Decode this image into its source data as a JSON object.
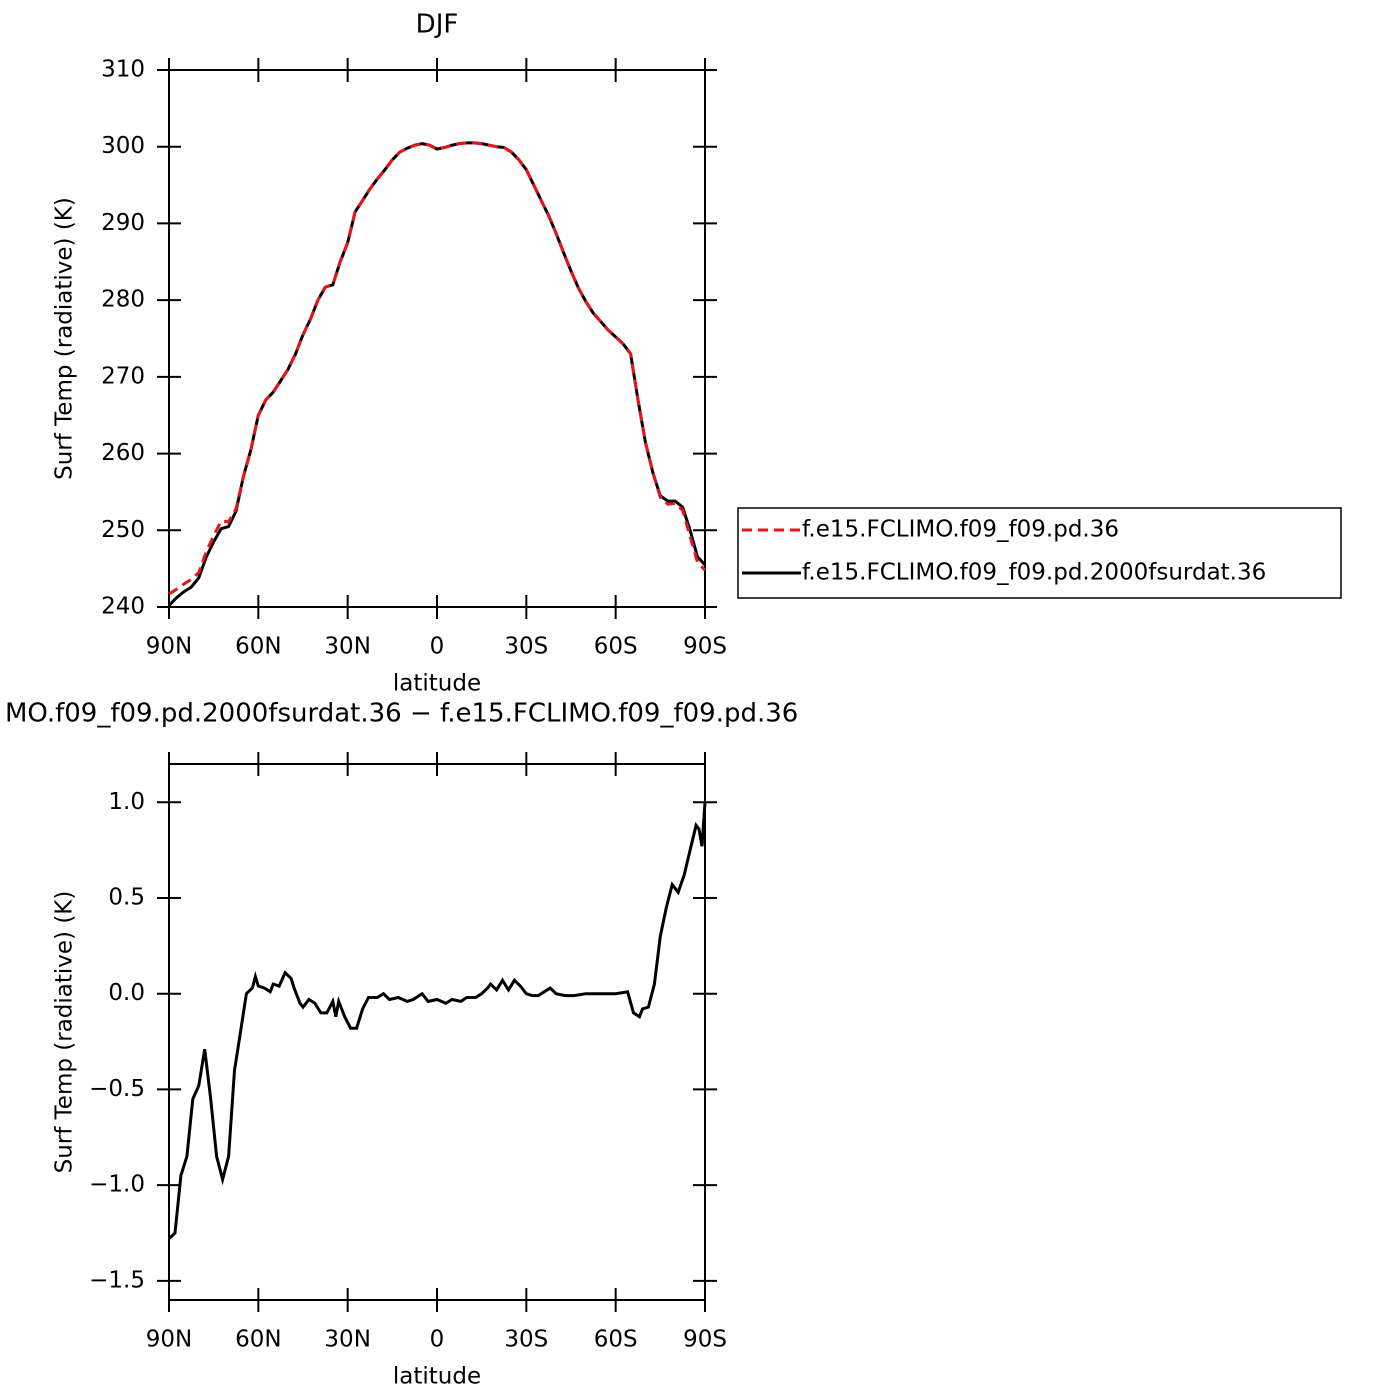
{
  "chart_data": [
    {
      "type": "line",
      "title": "DJF",
      "x_label": "latitude",
      "y_label": "Surf Temp (radiative) (K)",
      "x": [
        90,
        87.5,
        85,
        82.5,
        80,
        77.5,
        75,
        72.5,
        70,
        67.5,
        65,
        62.5,
        60,
        57.5,
        55,
        52.5,
        50,
        47.5,
        45,
        42.5,
        40,
        37.5,
        35,
        32.5,
        30,
        27.5,
        25,
        22.5,
        20,
        17.5,
        15,
        12.5,
        10,
        7.5,
        5,
        2.5,
        0,
        -2.5,
        -5,
        -7.5,
        -10,
        -12.5,
        -15,
        -17.5,
        -20,
        -22.5,
        -25,
        -27.5,
        -30,
        -32.5,
        -35,
        -37.5,
        -40,
        -42.5,
        -45,
        -47.5,
        -50,
        -52.5,
        -55,
        -57.5,
        -60,
        -62.5,
        -65,
        -67.5,
        -70,
        -72.5,
        -75,
        -77.5,
        -80,
        -82.5,
        -85,
        -87.5,
        -90
      ],
      "xlim": [
        90,
        -90
      ],
      "xticks": [
        {
          "value": 90,
          "label": "90N"
        },
        {
          "value": 60,
          "label": "60N"
        },
        {
          "value": 30,
          "label": "30N"
        },
        0,
        {
          "value": -30,
          "label": "30S"
        },
        {
          "value": -60,
          "label": "60S"
        },
        {
          "value": -90,
          "label": "90S"
        }
      ],
      "ylim": [
        240,
        310
      ],
      "yticks": [
        240,
        250,
        260,
        270,
        280,
        290,
        300,
        310
      ],
      "legend": "right",
      "series": [
        {
          "name": "f.e15.FCLIMO.f09_f09.pd.36",
          "color": "#e8141b",
          "dashed": true,
          "values": [
            241.7,
            242.3,
            243,
            243.6,
            244.5,
            247.2,
            249.3,
            251.2,
            251.1,
            252.8,
            257,
            260.5,
            265,
            267,
            268,
            269.5,
            271,
            273,
            275.5,
            277.5,
            280,
            281.7,
            282,
            285,
            287.5,
            291.5,
            293,
            294.5,
            295.8,
            297,
            298.3,
            299.3,
            299.8,
            300.2,
            300.4,
            300.2,
            299.7,
            299.9,
            300.2,
            300.4,
            300.5,
            300.5,
            300.4,
            300.2,
            300,
            299.9,
            299.3,
            298.3,
            297,
            295,
            293,
            291,
            288.7,
            286.2,
            283.8,
            281.6,
            279.8,
            278.3,
            277.2,
            276.1,
            275.2,
            274.3,
            273,
            267,
            261.5,
            257.5,
            254.3,
            253.4,
            253.5,
            252.6,
            249.2,
            245.8,
            244.8
          ]
        },
        {
          "name": "f.e15.FCLIMO.f09_f09.pd.2000fsurdat.36",
          "color": "#000000",
          "dashed": false,
          "values": [
            240.2,
            241.2,
            242,
            242.6,
            243.8,
            246.5,
            248.5,
            250.2,
            250.5,
            252.5,
            257,
            260.5,
            265,
            267,
            268,
            269.5,
            271,
            273,
            275.5,
            277.5,
            280,
            281.7,
            282,
            285,
            287.5,
            291.5,
            293,
            294.5,
            295.8,
            297,
            298.3,
            299.3,
            299.8,
            300.2,
            300.4,
            300.2,
            299.7,
            299.9,
            300.2,
            300.4,
            300.5,
            300.5,
            300.4,
            300.2,
            300,
            299.9,
            299.3,
            298.3,
            297,
            295,
            293,
            291,
            288.7,
            286.2,
            283.8,
            281.6,
            279.8,
            278.3,
            277.2,
            276.1,
            275.2,
            274.3,
            273,
            267,
            261.5,
            257.5,
            254.5,
            253.8,
            253.8,
            253,
            250,
            246.5,
            245.5
          ]
        }
      ]
    },
    {
      "type": "line",
      "title": "MO.f09_f09.pd.2000fsurdat.36 − f.e15.FCLIMO.f09_f09.pd.36",
      "x_label": "latitude",
      "y_label": "Surf Temp (radiative) (K)",
      "x": [
        90,
        88,
        86,
        84,
        82,
        80,
        78,
        76,
        74,
        72,
        70,
        68,
        66,
        64,
        62,
        61,
        60,
        58,
        56,
        55,
        53,
        51,
        49,
        48,
        46,
        45,
        43,
        41,
        39,
        37,
        35,
        34,
        33,
        31,
        29,
        27,
        25,
        23,
        20,
        18,
        16,
        13,
        10,
        8,
        5,
        3,
        0,
        -3,
        -5,
        -8,
        -10,
        -13,
        -15,
        -17,
        -18,
        -20,
        -22,
        -24,
        -26,
        -28,
        -30,
        -32,
        -34,
        -36,
        -38,
        -40,
        -43,
        -46,
        -50,
        -55,
        -60,
        -64,
        -66,
        -68,
        -69,
        -71,
        -73,
        -75,
        -77,
        -79,
        -81,
        -83,
        -85,
        -87,
        -88,
        -89,
        -90
      ],
      "xlim": [
        90,
        -90
      ],
      "xticks": [
        {
          "value": 90,
          "label": "90N"
        },
        {
          "value": 60,
          "label": "60N"
        },
        {
          "value": 30,
          "label": "30N"
        },
        0,
        {
          "value": -30,
          "label": "30S"
        },
        {
          "value": -60,
          "label": "60S"
        },
        {
          "value": -90,
          "label": "90S"
        }
      ],
      "ylim": [
        -1.6,
        1.2
      ],
      "yticks": [
        {
          "value": -1.5,
          "label": "−1.5"
        },
        {
          "value": -1,
          "label": "−1.0"
        },
        {
          "value": -0.5,
          "label": "−0.5"
        },
        {
          "value": 0,
          "label": "0.0"
        },
        {
          "value": 0.5,
          "label": "0.5"
        },
        {
          "value": 1,
          "label": "1.0"
        }
      ],
      "series": [
        {
          "color": "#000000",
          "dashed": false,
          "values": [
            -1.28,
            -1.25,
            -0.95,
            -0.85,
            -0.55,
            -0.48,
            -0.29,
            -0.55,
            -0.85,
            -0.97,
            -0.85,
            -0.4,
            -0.2,
            0,
            0.03,
            0.09,
            0.04,
            0.03,
            0.01,
            0.05,
            0.04,
            0.11,
            0.08,
            0.03,
            -0.05,
            -0.07,
            -0.03,
            -0.05,
            -0.1,
            -0.1,
            -0.04,
            -0.12,
            -0.04,
            -0.12,
            -0.18,
            -0.18,
            -0.08,
            -0.02,
            -0.02,
            0,
            -0.03,
            -0.02,
            -0.04,
            -0.03,
            0,
            -0.04,
            -0.03,
            -0.05,
            -0.03,
            -0.04,
            -0.02,
            -0.02,
            0,
            0.03,
            0.05,
            0.02,
            0.07,
            0.02,
            0.07,
            0.04,
            0,
            -0.01,
            -0.01,
            0.01,
            0.03,
            0,
            -0.01,
            -0.01,
            0,
            0,
            0,
            0.01,
            -0.1,
            -0.12,
            -0.08,
            -0.07,
            0.05,
            0.3,
            0.45,
            0.57,
            0.53,
            0.62,
            0.75,
            0.88,
            0.86,
            0.77,
            1.0
          ]
        }
      ]
    }
  ]
}
